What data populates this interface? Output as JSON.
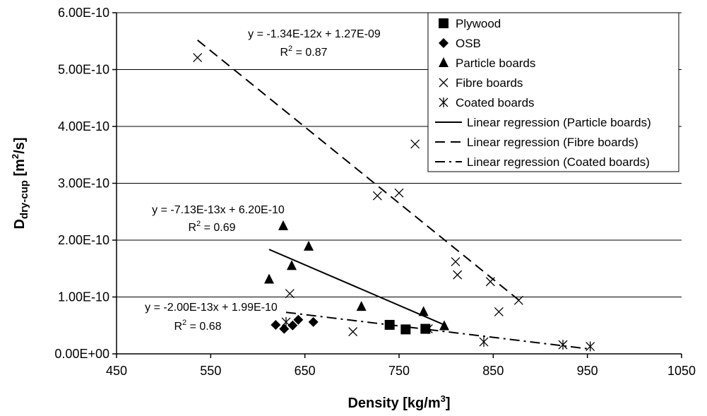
{
  "chart_data": {
    "type": "scatter",
    "xlabel": {
      "main": "Density [kg/m",
      "sup": "3",
      "end": "]"
    },
    "ylabel": {
      "main": "D",
      "sub": "dry-cup",
      "mid": " [m",
      "sup": "2",
      "end": "/s]"
    },
    "xlim": [
      450,
      1050
    ],
    "ylim": [
      0,
      6e-10
    ],
    "xticks": [
      450,
      550,
      650,
      750,
      850,
      950,
      1050
    ],
    "yticks": [
      0,
      1e-10,
      2e-10,
      3e-10,
      4e-10,
      5e-10,
      6e-10
    ],
    "yticklabels": [
      "0.00E+00",
      "1.00E-10",
      "2.00E-10",
      "3.00E-10",
      "4.00E-10",
      "5.00E-10",
      "6.00E-10"
    ],
    "grid": "horizontal major",
    "legend_placement": "top-right",
    "series": [
      {
        "name": "Plywood",
        "marker": "square",
        "points": [
          [
            740,
            5.1e-11
          ],
          [
            757,
            4.3e-11
          ],
          [
            778,
            4.4e-11
          ]
        ]
      },
      {
        "name": "OSB",
        "marker": "diamond",
        "points": [
          [
            619,
            5.1e-11
          ],
          [
            628,
            4.4e-11
          ],
          [
            637,
            5e-11
          ],
          [
            643,
            6e-11
          ],
          [
            659,
            5.6e-11
          ]
        ]
      },
      {
        "name": "Particle boards",
        "marker": "triangle",
        "points": [
          [
            612,
            1.31e-10
          ],
          [
            627,
            2.25e-10
          ],
          [
            636,
            1.55e-10
          ],
          [
            654,
            1.89e-10
          ],
          [
            710,
            8.3e-11
          ],
          [
            776,
            7.4e-11
          ],
          [
            798,
            4.9e-11
          ]
        ]
      },
      {
        "name": "Fibre boards",
        "marker": "x",
        "points": [
          [
            536,
            5.21e-10
          ],
          [
            634,
            1.06e-10
          ],
          [
            701,
            3.9e-11
          ],
          [
            727,
            2.78e-10
          ],
          [
            750,
            2.83e-10
          ],
          [
            767,
            3.69e-10
          ],
          [
            810,
            1.62e-10
          ],
          [
            812,
            1.39e-10
          ],
          [
            847,
            1.27e-10
          ],
          [
            856,
            7.4e-11
          ],
          [
            877,
            9.4e-11
          ]
        ]
      },
      {
        "name": "Coated boards",
        "marker": "asterisk",
        "points": [
          [
            630,
            5.6e-11
          ],
          [
            781,
            4.4e-11
          ],
          [
            840,
            2.1e-11
          ],
          [
            924,
            1.6e-11
          ],
          [
            953,
            1.3e-11
          ]
        ]
      }
    ],
    "regressions": [
      {
        "name": "Linear regression (Particle boards)",
        "style": "solid",
        "x": [
          612,
          798
        ],
        "equation": "y = -7.13E-13x + 6.20E-10",
        "r2": "0.69"
      },
      {
        "name": "Linear regression (Fibre boards)",
        "style": "dashed",
        "x": [
          536,
          877
        ],
        "equation": "y = -1.34E-12x + 1.27E-09",
        "r2": "0.87"
      },
      {
        "name": "Linear regression (Coated boards)",
        "style": "dashdot",
        "x": [
          630,
          953
        ],
        "equation": "y = -2.00E-13x + 1.99E-10",
        "r2": "0.68"
      }
    ],
    "r2_prefix": "R",
    "r2_sup": "2",
    "r2_mid": " = "
  }
}
